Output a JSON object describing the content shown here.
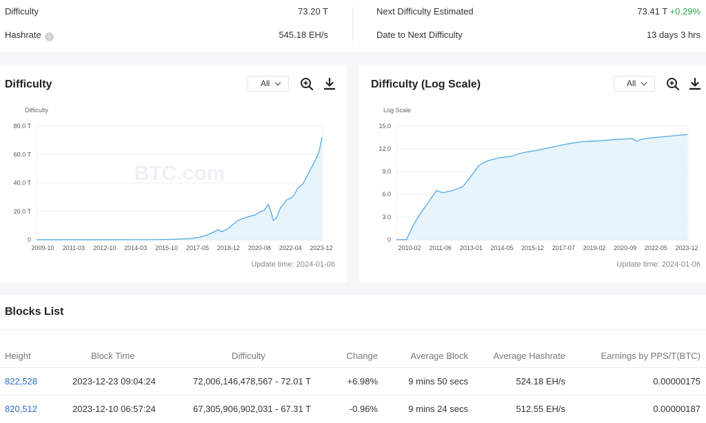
{
  "summary": {
    "difficulty_label": "Difficulty",
    "difficulty_value": "73.20 T",
    "hashrate_label": "Hashrate",
    "hashrate_info_icon": "i",
    "hashrate_value": "545.18 EH/s",
    "next_label": "Next Difficulty Estimated",
    "next_value": "73.41 T",
    "next_change": "+0.29%",
    "date_label": "Date to Next Difficulty",
    "date_value": "13 days 3 hrs"
  },
  "charts": [
    {
      "title": "Difficulty",
      "range_select": "All",
      "update_time": "Update time: 2024-01-06",
      "watermark": "BTC.com"
    },
    {
      "title": "Difficulty (Log Scale)",
      "range_select": "All",
      "update_time": "Update time: 2024-01-06",
      "watermark": "BTC.com"
    }
  ],
  "chart_data": [
    {
      "type": "area",
      "title": "Difficulty",
      "ylabel": "Difficulty",
      "y_ticks": [
        "0",
        "20.0 T",
        "40.0 T",
        "60.0 T",
        "80.0 T"
      ],
      "ylim": [
        0,
        80
      ],
      "x_ticks": [
        "2009-10",
        "2011-03",
        "2012-10",
        "2014-03",
        "2015-10",
        "2017-05",
        "2018-12",
        "2020-08",
        "2022-04",
        "2023-12"
      ],
      "xlim": [
        2009.75,
        2024.0
      ],
      "grid": true,
      "series": [
        {
          "x": [
            2009.75,
            2012.0,
            2014.0,
            2015.5,
            2016.5,
            2017.0,
            2017.5,
            2017.9,
            2018.3,
            2018.8,
            2018.95,
            2019.3,
            2019.7,
            2020.0,
            2020.3,
            2020.6,
            2020.9,
            2021.1,
            2021.3,
            2021.45,
            2021.55,
            2021.7,
            2021.9,
            2022.2,
            2022.5,
            2022.8,
            2023.0,
            2023.3,
            2023.6,
            2023.8,
            2023.97
          ],
          "y": [
            0,
            0,
            0.01,
            0.07,
            0.3,
            0.6,
            0.9,
            1.9,
            3.5,
            7.2,
            5.6,
            7.9,
            12.8,
            14.8,
            16.2,
            17.3,
            19.5,
            21.0,
            24.8,
            18.5,
            13.5,
            15.5,
            22.3,
            28.0,
            30.0,
            37.0,
            39.0,
            47.0,
            55.0,
            61.0,
            72.0
          ]
        }
      ]
    },
    {
      "type": "area",
      "title": "Difficulty (Log Scale)",
      "ylabel": "Log Scale",
      "y_ticks": [
        "0",
        "3.0",
        "6.0",
        "9.0",
        "12.0",
        "15.0"
      ],
      "ylim": [
        0,
        15
      ],
      "x_ticks": [
        "2010-02",
        "2011-06",
        "2013-01",
        "2014-05",
        "2015-12",
        "2017-07",
        "2019-02",
        "2020-09",
        "2022-05",
        "2023-12"
      ],
      "xlim": [
        2009.5,
        2024.0
      ],
      "grid": true,
      "series": [
        {
          "x": [
            2009.5,
            2010.0,
            2010.1,
            2010.4,
            2010.7,
            2011.1,
            2011.5,
            2011.8,
            2012.3,
            2012.8,
            2013.3,
            2013.6,
            2014.0,
            2014.6,
            2015.2,
            2015.8,
            2016.5,
            2017.2,
            2017.9,
            2018.6,
            2019.2,
            2019.8,
            2020.5,
            2021.2,
            2021.45,
            2021.6,
            2022.0,
            2022.6,
            2023.2,
            2023.97
          ],
          "y": [
            0,
            0,
            0.6,
            2.2,
            3.5,
            5.0,
            6.5,
            6.2,
            6.5,
            7.0,
            8.7,
            9.8,
            10.4,
            10.8,
            11.0,
            11.5,
            11.8,
            12.2,
            12.6,
            12.9,
            13.0,
            13.1,
            13.25,
            13.35,
            13.0,
            13.2,
            13.4,
            13.55,
            13.7,
            13.9
          ]
        }
      ]
    }
  ],
  "blocks": {
    "title": "Blocks List",
    "headers": [
      "Height",
      "Block Time",
      "Difficulty",
      "Change",
      "Average Block",
      "Average Hashrate",
      "Earnings by PPS/T(BTC)"
    ],
    "rows": [
      {
        "height": "822,528",
        "time": "2023-12-23 09:04:24",
        "difficulty": "72,006,146,478,567 - 72.01 T",
        "change": "+6.98%",
        "avg_block": "9 mins 50 secs",
        "avg_hashrate": "524.18 EH/s",
        "earnings": "0.00000175"
      },
      {
        "height": "820,512",
        "time": "2023-12-10 06:57:24",
        "difficulty": "67,305,906,902,031 - 67.31 T",
        "change": "-0.96%",
        "avg_block": "9 mins 24 secs",
        "avg_hashrate": "512.55 EH/s",
        "earnings": "0.00000187"
      }
    ]
  },
  "colors": {
    "line": "#5aaee6",
    "fill": "#e6f3fc",
    "positive": "#27a844",
    "negative": "#e64545",
    "link": "#2a6bbf"
  }
}
